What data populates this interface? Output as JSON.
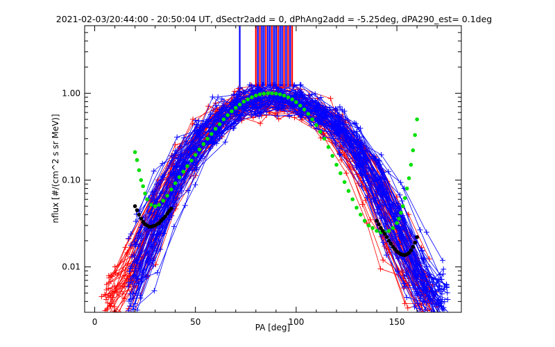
{
  "chart_data": {
    "type": "scatter",
    "title": "2021-02-03/20:44:00 - 20:50:04 UT, dSectr2add = 0, dPhAng2add = -5.25deg, dPA290_est=   0.1deg",
    "xlabel": "PA [deg]",
    "ylabel": "nflux [#/(cm^2 s sr MeV)]",
    "xlim": [
      -5,
      182
    ],
    "ylim": [
      0.003,
      6.0
    ],
    "yscale": "log",
    "grid": false,
    "x_ticks": [
      "0",
      "50",
      "100",
      "150"
    ],
    "x_tick_values": [
      0,
      50,
      100,
      150
    ],
    "y_ticks": [
      "0.01",
      "0.10",
      "1.00"
    ],
    "y_tick_values": [
      0.01,
      0.1,
      1.0
    ],
    "colors": {
      "blue_series": "#0000ff",
      "red_series": "#ff0000",
      "fit_green": "#00e000",
      "fit_black": "#000000"
    },
    "series": [
      {
        "color": "#00e000",
        "marker": "dot",
        "x": [
          20,
          21,
          22,
          23,
          24,
          25,
          26,
          28,
          30,
          32,
          34,
          36,
          38,
          40,
          42,
          44,
          46,
          48,
          50,
          52,
          54,
          56,
          58,
          60,
          62,
          64,
          66,
          68,
          70,
          72,
          74,
          76,
          78,
          80,
          82,
          84,
          86,
          88,
          90,
          92,
          94,
          96,
          98,
          100,
          102,
          104,
          106,
          108,
          110,
          112,
          114,
          116,
          118,
          120,
          122,
          124,
          126,
          128,
          130,
          132,
          134,
          136,
          138,
          140,
          142,
          144,
          146,
          148,
          150,
          151,
          152,
          153,
          154,
          155,
          156,
          157,
          158,
          159,
          160
        ],
        "y": [
          0.21,
          0.17,
          0.13,
          0.1,
          0.085,
          0.07,
          0.06,
          0.052,
          0.05,
          0.052,
          0.058,
          0.066,
          0.078,
          0.092,
          0.108,
          0.125,
          0.145,
          0.168,
          0.195,
          0.225,
          0.26,
          0.3,
          0.34,
          0.39,
          0.44,
          0.5,
          0.56,
          0.62,
          0.68,
          0.74,
          0.8,
          0.85,
          0.9,
          0.94,
          0.97,
          0.99,
          1.0,
          1.0,
          0.99,
          0.97,
          0.94,
          0.9,
          0.85,
          0.79,
          0.72,
          0.65,
          0.58,
          0.5,
          0.43,
          0.36,
          0.3,
          0.24,
          0.19,
          0.15,
          0.12,
          0.095,
          0.075,
          0.06,
          0.048,
          0.04,
          0.034,
          0.03,
          0.028,
          0.026,
          0.025,
          0.025,
          0.026,
          0.028,
          0.032,
          0.036,
          0.042,
          0.05,
          0.062,
          0.08,
          0.105,
          0.15,
          0.22,
          0.33,
          0.5
        ]
      },
      {
        "color": "#000000",
        "marker": "dot",
        "x": [
          20,
          21,
          22,
          23,
          24,
          25,
          26,
          27,
          28,
          29,
          30,
          31,
          32,
          33,
          34,
          35,
          36,
          37,
          38
        ],
        "y": [
          0.05,
          0.045,
          0.04,
          0.036,
          0.033,
          0.031,
          0.03,
          0.029,
          0.029,
          0.0295,
          0.03,
          0.031,
          0.032,
          0.034,
          0.036,
          0.038,
          0.041,
          0.044,
          0.047
        ]
      },
      {
        "color": "#000000",
        "marker": "dot",
        "x": [
          140,
          141,
          142,
          143,
          144,
          145,
          146,
          147,
          148,
          149,
          150,
          151,
          152,
          153,
          154,
          155,
          156,
          157,
          158,
          159,
          160
        ],
        "y": [
          0.034,
          0.031,
          0.028,
          0.026,
          0.024,
          0.022,
          0.02,
          0.0185,
          0.017,
          0.016,
          0.015,
          0.0145,
          0.014,
          0.0138,
          0.0137,
          0.014,
          0.0145,
          0.0155,
          0.017,
          0.019,
          0.022
        ]
      }
    ],
    "data_model": {
      "blue_series": {
        "color": "#0000ff",
        "marker": "plus",
        "trace_count": 60,
        "x_range": [
          20,
          172
        ],
        "peak_x": 90,
        "peak_y": 0.9
      },
      "red_series": {
        "color": "#ff0000",
        "marker": "plus",
        "trace_count": 40,
        "x_range": [
          8,
          165
        ],
        "peak_x": 88,
        "peak_y": 0.85
      },
      "vertical_spikes": [
        {
          "x": 72,
          "color": "#0000ff"
        },
        {
          "x": 80,
          "color": "#ff0000"
        },
        {
          "x": 81,
          "color": "#0000ff"
        },
        {
          "x": 82,
          "color": "#ff0000"
        },
        {
          "x": 83,
          "color": "#0000ff"
        },
        {
          "x": 84,
          "color": "#0000ff"
        },
        {
          "x": 85,
          "color": "#ff0000"
        },
        {
          "x": 86,
          "color": "#0000ff"
        },
        {
          "x": 87,
          "color": "#0000ff"
        },
        {
          "x": 88,
          "color": "#ff0000"
        },
        {
          "x": 89,
          "color": "#0000ff"
        },
        {
          "x": 90,
          "color": "#0000ff"
        },
        {
          "x": 91,
          "color": "#ff0000"
        },
        {
          "x": 92,
          "color": "#0000ff"
        },
        {
          "x": 93,
          "color": "#0000ff"
        },
        {
          "x": 94,
          "color": "#ff0000"
        },
        {
          "x": 95,
          "color": "#0000ff"
        },
        {
          "x": 96,
          "color": "#ff0000"
        },
        {
          "x": 97,
          "color": "#0000ff"
        },
        {
          "x": 98,
          "color": "#ff0000"
        }
      ],
      "spike_y_bottom": 1.2
    }
  }
}
